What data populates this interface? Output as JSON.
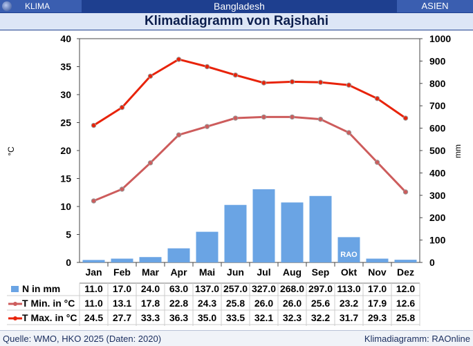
{
  "header": {
    "left_label": "KLIMA",
    "country": "Bangladesh",
    "continent": "ASIEN",
    "title": "Klimadiagramm von Rajshahi"
  },
  "footer": {
    "source": "Quelle: WMO, HKO 2025 (Daten: 2020)",
    "credit": "Klimadiagramm: RAOnline"
  },
  "watermark": "RAO",
  "colors": {
    "bars": "#6aa4e4",
    "tmin": "#cd5c5c",
    "tmax": "#e8230a",
    "header_dark": "#1e3f8f",
    "header_light": "#3a5eb0"
  },
  "chart_data": {
    "type": "bar+line",
    "categories": [
      "Jan",
      "Feb",
      "Mar",
      "Apr",
      "Mai",
      "Jun",
      "Jul",
      "Aug",
      "Sep",
      "Okt",
      "Nov",
      "Dez"
    ],
    "y_left": {
      "label": "°C",
      "range": [
        0,
        40
      ],
      "ticks": [
        0,
        5,
        10,
        15,
        20,
        25,
        30,
        35,
        40
      ]
    },
    "y_right": {
      "label": "mm",
      "range": [
        0,
        1000
      ],
      "ticks": [
        0,
        100,
        200,
        300,
        400,
        500,
        600,
        700,
        800,
        900,
        1000
      ]
    },
    "grid": false,
    "series": [
      {
        "name": "N in mm",
        "type": "bar",
        "axis": "right",
        "values": [
          11.0,
          17.0,
          24.0,
          63.0,
          137.0,
          257.0,
          327.0,
          268.0,
          297.0,
          113.0,
          17.0,
          12.0
        ],
        "labels": [
          "11.0",
          "17.0",
          "24.0",
          "63.0",
          "137.0",
          "257.0",
          "327.0",
          "268.0",
          "297.0",
          "113.0",
          "17.0",
          "12.0"
        ]
      },
      {
        "name": "T Min. in °C",
        "type": "line",
        "axis": "left",
        "values": [
          11.0,
          13.1,
          17.8,
          22.8,
          24.3,
          25.8,
          26.0,
          26.0,
          25.6,
          23.2,
          17.9,
          12.6
        ],
        "labels": [
          "11.0",
          "13.1",
          "17.8",
          "22.8",
          "24.3",
          "25.8",
          "26.0",
          "26.0",
          "25.6",
          "23.2",
          "17.9",
          "12.6"
        ]
      },
      {
        "name": "T Max. in °C",
        "type": "line",
        "axis": "left",
        "values": [
          24.5,
          27.7,
          33.3,
          36.3,
          35.0,
          33.5,
          32.1,
          32.3,
          32.2,
          31.7,
          29.3,
          25.8
        ],
        "labels": [
          "24.5",
          "27.7",
          "33.3",
          "36.3",
          "35.0",
          "33.5",
          "32.1",
          "32.3",
          "32.2",
          "31.7",
          "29.3",
          "25.8"
        ]
      }
    ]
  }
}
